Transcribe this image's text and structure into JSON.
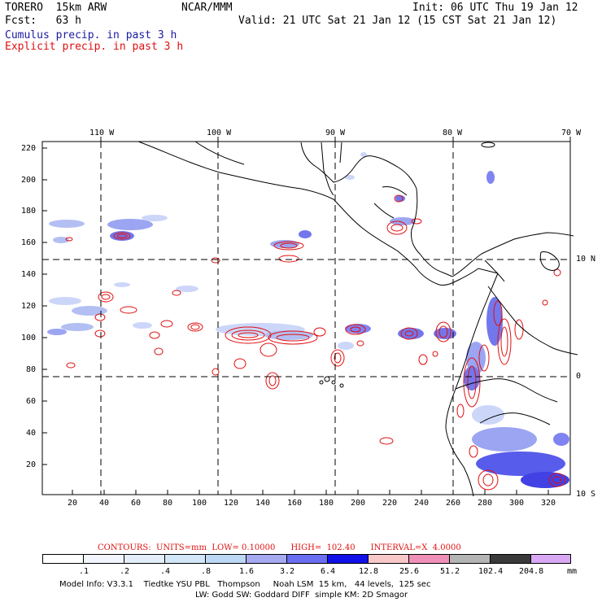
{
  "header": {
    "model": "TORERO  15km ARW",
    "org": "NCAR/MMM",
    "init": "Init: 06 UTC Thu 19 Jan 12",
    "fcst": "Fcst:   63 h",
    "valid": "Valid: 21 UTC Sat 21 Jan 12 (15 CST Sat 21 Jan 12)",
    "field1": "Cumulus precip. in past 3 h",
    "field2": "Explicit precip. in past 3 h",
    "field1_color": "#1a1aa0",
    "field2_color": "#e01010"
  },
  "map": {
    "lon_labels": [
      "110 W",
      "100 W",
      "90 W",
      "80 W",
      "70 W"
    ],
    "lat_labels": [
      "10 N",
      "0",
      "10 S"
    ],
    "y_ticks": [
      "220",
      "200",
      "180",
      "160",
      "140",
      "120",
      "100",
      "80",
      "60",
      "40",
      "20"
    ],
    "x_ticks": [
      "20",
      "40",
      "60",
      "80",
      "100",
      "120",
      "140",
      "160",
      "180",
      "200",
      "220",
      "240",
      "260",
      "280",
      "300",
      "320"
    ]
  },
  "contour_info": {
    "text": "CONTOURS:  UNITS=mm  LOW= 0.10000      HIGH=  102.40      INTERVAL=X  4.0000",
    "color": "#e01010"
  },
  "legend": {
    "labels": [
      ".1",
      ".2",
      ".4",
      ".8",
      "1.6",
      "3.2",
      "6.4",
      "12.8",
      "25.6",
      "51.2",
      "102.4",
      "204.8"
    ],
    "unit": "mm",
    "colors": [
      "#ffffff",
      "#f2f6fc",
      "#e4eefa",
      "#d2e6f8",
      "#bcd8f4",
      "#a6aaf0",
      "#6a6ef0",
      "#1010e8",
      "#f8c8c8",
      "#f090b8",
      "#b4b4b4",
      "#3a3a3a",
      "#d8a8f4"
    ]
  },
  "footer": {
    "line1": "Model Info: V3.3.1    Tiedtke YSU PBL   Thompson     Noah LSM  15 km,   44 levels,  125 sec",
    "line2": "LW: Godd SW: Goddard DIFF  simple KM: 2D Smagor"
  }
}
